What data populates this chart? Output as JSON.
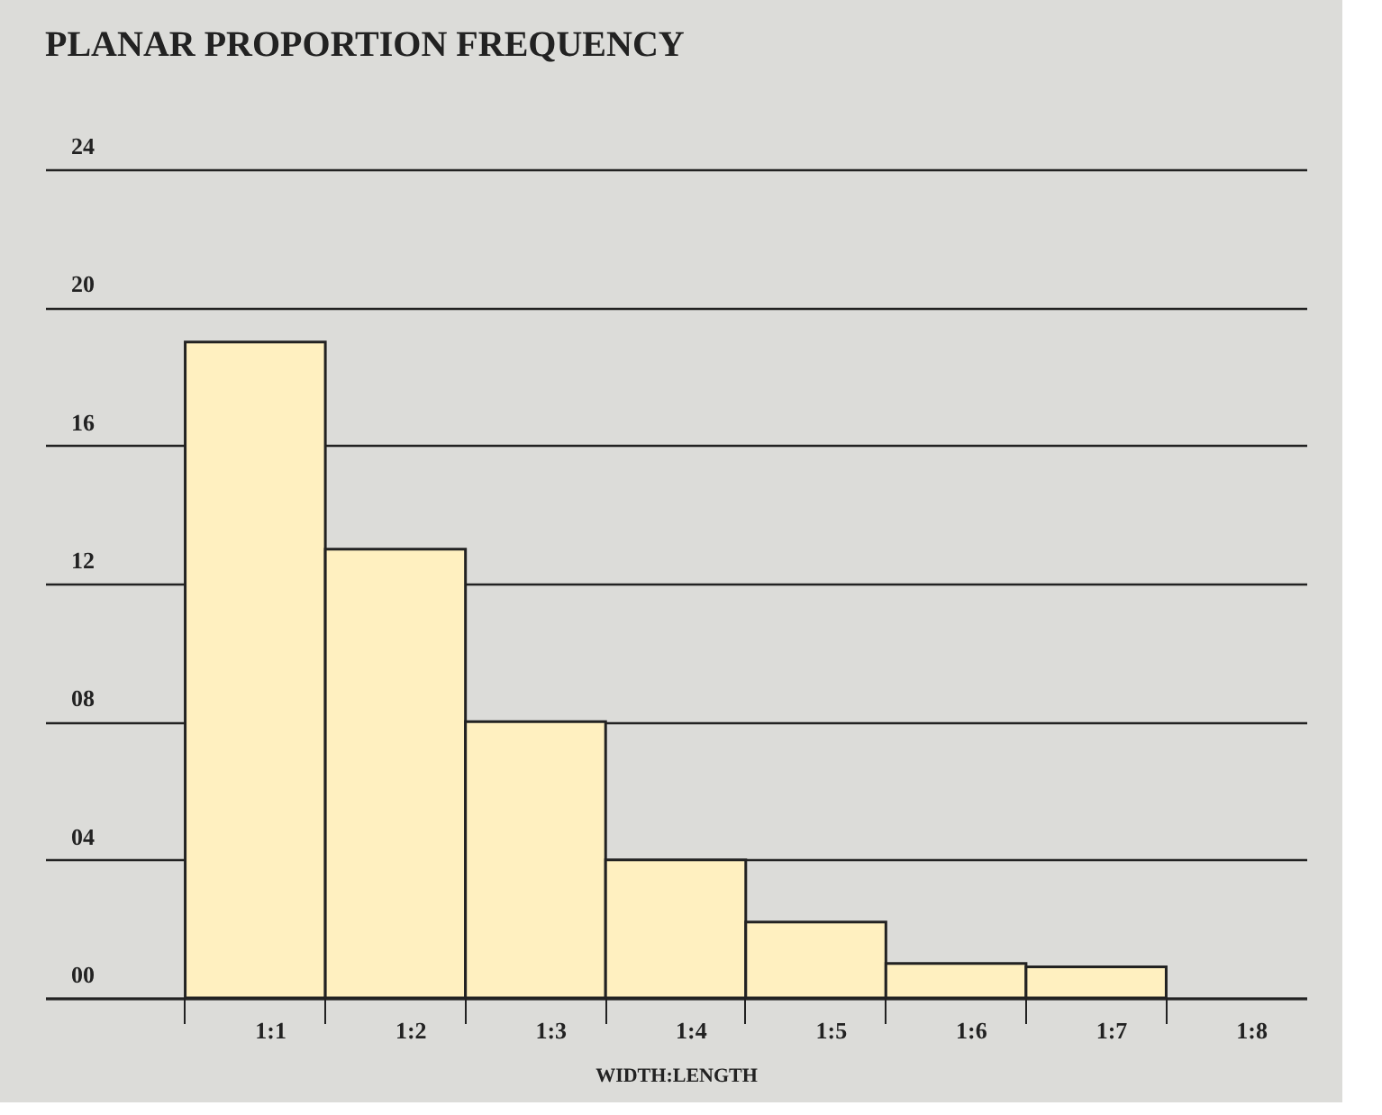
{
  "chart_data": {
    "type": "bar",
    "title": "PLANAR PROPORTION FREQUENCY",
    "xlabel": "WIDTH:LENGTH",
    "categories": [
      "1:1",
      "1:2",
      "1:3",
      "1:4",
      "1:5",
      "1:6",
      "1:7",
      "1:8"
    ],
    "values": [
      19,
      13,
      8,
      4,
      2.2,
      1,
      0.9,
      null
    ],
    "color": "#fff0c0",
    "ylim": [
      0,
      24
    ],
    "yticks": [
      {
        "value": 0,
        "label": "00"
      },
      {
        "value": 4,
        "label": "04"
      },
      {
        "value": 8,
        "label": "08"
      },
      {
        "value": 12,
        "label": "12"
      },
      {
        "value": 16,
        "label": "16"
      },
      {
        "value": 20,
        "label": "20"
      },
      {
        "value": 24,
        "label": "24"
      }
    ],
    "grid": "y"
  }
}
